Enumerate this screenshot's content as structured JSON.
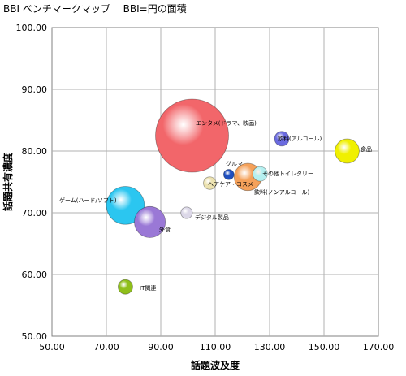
{
  "chart_data": {
    "type": "bubble",
    "title": "BBI ベンチマークマップ　 BBI=円の面積",
    "xlabel": "話題波及度",
    "ylabel": "話題共有濃度",
    "xlim": [
      50,
      170
    ],
    "ylim": [
      50,
      100
    ],
    "xticks": [
      "50.00",
      "70.00",
      "90.00",
      "110.00",
      "130.00",
      "150.00",
      "170.00"
    ],
    "yticks": [
      "50.00",
      "60.00",
      "70.00",
      "80.00",
      "90.00",
      "100.00"
    ],
    "grid": true,
    "legend": "none",
    "series": [
      {
        "label": "エンタメ(ドラマ、映画)",
        "x": 101.5,
        "y": 82.5,
        "size": 100,
        "color": "#f2666a"
      },
      {
        "label": "飲料(アルコール)",
        "x": 134.5,
        "y": 82.0,
        "size": 4,
        "color": "#6b6be0"
      },
      {
        "label": "食品",
        "x": 158.5,
        "y": 80.0,
        "size": 11,
        "color": "#f0f000"
      },
      {
        "label": "飲料(ノンアルコール)",
        "x": 122.0,
        "y": 75.8,
        "size": 14,
        "color": "#f5a15a"
      },
      {
        "label": "その他トイレタリー",
        "x": 126.5,
        "y": 76.3,
        "size": 4,
        "color": "#b5f0f0"
      },
      {
        "label": "グルマ",
        "x": 115.0,
        "y": 76.2,
        "size": 2,
        "color": "#1f4fbf"
      },
      {
        "label": "ヘアケア・コスメ",
        "x": 108.0,
        "y": 74.8,
        "size": 3,
        "color": "#ece2b0"
      },
      {
        "label": "ゲーム(ハード/ソフト)",
        "x": 77.0,
        "y": 71.2,
        "size": 27,
        "color": "#2bc6f0"
      },
      {
        "label": "外食",
        "x": 86.0,
        "y": 68.5,
        "size": 18,
        "color": "#9a78d6"
      },
      {
        "label": "デジタル製品",
        "x": 99.5,
        "y": 70.0,
        "size": 2.5,
        "color": "#dcd8e8"
      },
      {
        "label": "IT関連",
        "x": 77.0,
        "y": 58.0,
        "size": 4,
        "color": "#8fbf1a"
      }
    ]
  }
}
